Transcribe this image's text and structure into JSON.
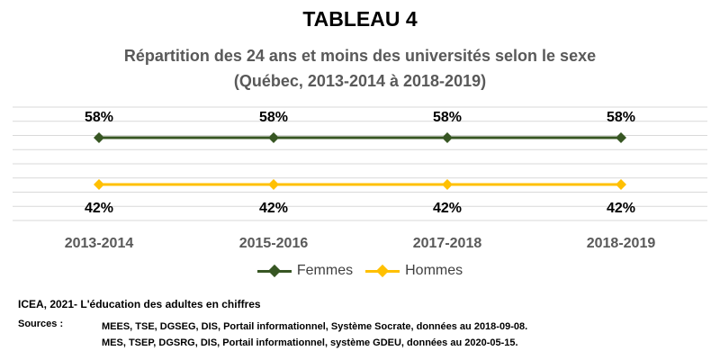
{
  "title": "TABLEAU 4",
  "subtitle_line1": "Répartition des 24 ans et moins des universités selon le sexe",
  "subtitle_line2": "(Québec, 2013-2014 à 2018-2019)",
  "chart_data": {
    "type": "line",
    "categories": [
      "2013-2014",
      "2015-2016",
      "2017-2018",
      "2018-2019"
    ],
    "series": [
      {
        "name": "Femmes",
        "values": [
          58,
          58,
          58,
          58
        ],
        "labels": [
          "58%",
          "58%",
          "58%",
          "58%"
        ],
        "color": "#375623",
        "marker": "diamond",
        "label_position": "above"
      },
      {
        "name": "Hommes",
        "values": [
          42,
          42,
          42,
          42
        ],
        "labels": [
          "42%",
          "42%",
          "42%",
          "42%"
        ],
        "color": "#FFC000",
        "marker": "diamond",
        "label_position": "below"
      }
    ],
    "grid": true,
    "legend": "bottom"
  },
  "footer": {
    "main": "ICEA, 2021- L'éducation des adultes en chiffres",
    "sources_label": "Sources :",
    "sources": [
      "MEES, TSE, DGSEG, DIS, Portail informationnel, Système Socrate, données au 2018-09-08.",
      "MES, TSEP, DGSRG, DIS, Portail informationnel, système GDEU, données au 2020-05-15."
    ]
  }
}
